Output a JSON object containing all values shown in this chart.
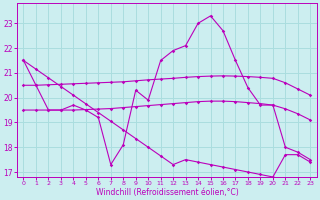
{
  "xlabel": "Windchill (Refroidissement éolien,°C)",
  "background_color": "#cceef0",
  "grid_color": "#aadddf",
  "line_color": "#bb00bb",
  "xlim": [
    -0.5,
    23.5
  ],
  "ylim": [
    16.8,
    23.8
  ],
  "yticks": [
    17,
    18,
    19,
    20,
    21,
    22,
    23
  ],
  "xticks": [
    0,
    1,
    2,
    3,
    4,
    5,
    6,
    7,
    8,
    9,
    10,
    11,
    12,
    13,
    14,
    15,
    16,
    17,
    18,
    19,
    20,
    21,
    22,
    23
  ],
  "s1_x": [
    0,
    1,
    2,
    3,
    4,
    5,
    6,
    7,
    8,
    9,
    10,
    11,
    12,
    13,
    14,
    15,
    16,
    17,
    18,
    19,
    20,
    21,
    22,
    23
  ],
  "s1_y": [
    21.5,
    20.5,
    19.5,
    19.5,
    19.7,
    19.5,
    19.2,
    17.3,
    18.1,
    20.3,
    19.9,
    21.5,
    21.9,
    22.1,
    23.0,
    23.3,
    22.7,
    21.5,
    20.4,
    19.7,
    19.7,
    18.0,
    17.8,
    17.5
  ],
  "s2_x": [
    0,
    1,
    2,
    3,
    4,
    5,
    6,
    7,
    8,
    9,
    10,
    11,
    12,
    13,
    14,
    15,
    16,
    17,
    18,
    19,
    20,
    21,
    22,
    23
  ],
  "s2_y": [
    20.5,
    20.5,
    20.52,
    20.54,
    20.56,
    20.58,
    20.6,
    20.62,
    20.64,
    20.68,
    20.72,
    20.75,
    20.78,
    20.82,
    20.85,
    20.87,
    20.88,
    20.87,
    20.85,
    20.82,
    20.78,
    20.6,
    20.35,
    20.1
  ],
  "s3_x": [
    0,
    1,
    2,
    3,
    4,
    5,
    6,
    7,
    8,
    9,
    10,
    11,
    12,
    13,
    14,
    15,
    16,
    17,
    18,
    19,
    20,
    21,
    22,
    23
  ],
  "s3_y": [
    19.5,
    19.5,
    19.5,
    19.5,
    19.5,
    19.52,
    19.54,
    19.56,
    19.6,
    19.64,
    19.68,
    19.72,
    19.76,
    19.8,
    19.84,
    19.86,
    19.86,
    19.84,
    19.8,
    19.76,
    19.7,
    19.55,
    19.35,
    19.1
  ],
  "s4_x": [
    0,
    1,
    2,
    3,
    4,
    5,
    6,
    7,
    8,
    9,
    10,
    11,
    12,
    13,
    14,
    15,
    16,
    17,
    18,
    19,
    20,
    21,
    22,
    23
  ],
  "s4_y": [
    21.5,
    21.15,
    20.8,
    20.45,
    20.1,
    19.75,
    19.4,
    19.05,
    18.7,
    18.35,
    18.0,
    17.65,
    17.3,
    17.5,
    17.4,
    17.3,
    17.2,
    17.1,
    17.0,
    16.9,
    16.8,
    17.7,
    17.7,
    17.4
  ]
}
